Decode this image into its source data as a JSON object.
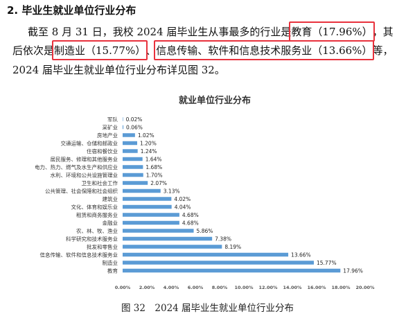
{
  "section": {
    "heading": "2. 毕业生就业单位行业分布"
  },
  "paragraph": {
    "line1_a": "截至 8 月 31 日，我校 2024 届毕业生从事最多的行业是",
    "hl1": "教育（17.96%）",
    "line1_b": "，其",
    "line2_a": "后依次是",
    "hl2": "制造业（15.77%）",
    "line2_b": "、",
    "hl3": "信息传输、软件和信息技术服务业（13.66%）",
    "line2_c": "等，",
    "line3": "2024 届毕业生就业单位行业分布详见图 32。"
  },
  "caption": "图 32　2024 届毕业生就业单位行业分布",
  "colors": {
    "bar": "#5b9bd5",
    "highlight": "#e8313c"
  },
  "chart_data": {
    "type": "bar",
    "orientation": "horizontal",
    "title": "就业单位行业分布",
    "categories": [
      "军队",
      "采矿业",
      "房地产业",
      "交通运输、仓储和邮政业",
      "住宿和餐饮业",
      "居民服务、修理和其他服务业",
      "电力、热力、燃气及水生产和供应业",
      "水利、环境和公共设施管理业",
      "卫生和社会工作",
      "公共管理、社会保障和社会组织",
      "建筑业",
      "文化、体育和娱乐业",
      "租赁和商务服务业",
      "金融业",
      "农、林、牧、渔业",
      "科学研究和技术服务业",
      "批发和零售业",
      "信息传输、软件和信息技术服务业",
      "制造业",
      "教育"
    ],
    "values": [
      0.02,
      0.06,
      1.02,
      1.2,
      1.24,
      1.64,
      1.68,
      1.7,
      2.07,
      3.13,
      4.02,
      4.04,
      4.68,
      4.68,
      5.86,
      7.38,
      8.19,
      13.66,
      15.77,
      17.96
    ],
    "value_labels": [
      "0.02%",
      "0.06%",
      "1.02%",
      "1.20%",
      "1.24%",
      "1.64%",
      "1.68%",
      "1.70%",
      "2.07%",
      "3.13%",
      "4.02%",
      "4.04%",
      "4.68%",
      "4.68%",
      "5.86%",
      "7.38%",
      "8.19%",
      "13.66%",
      "15.77%",
      "17.96%"
    ],
    "xlim": [
      0,
      20
    ],
    "x_ticks": [
      "0.00%",
      "2.00%",
      "4.00%",
      "6.00%",
      "8.00%",
      "10.00%",
      "12.00%",
      "14.00%",
      "16.00%",
      "18.00%",
      "20.00%"
    ],
    "grid": false,
    "legend": "none"
  }
}
